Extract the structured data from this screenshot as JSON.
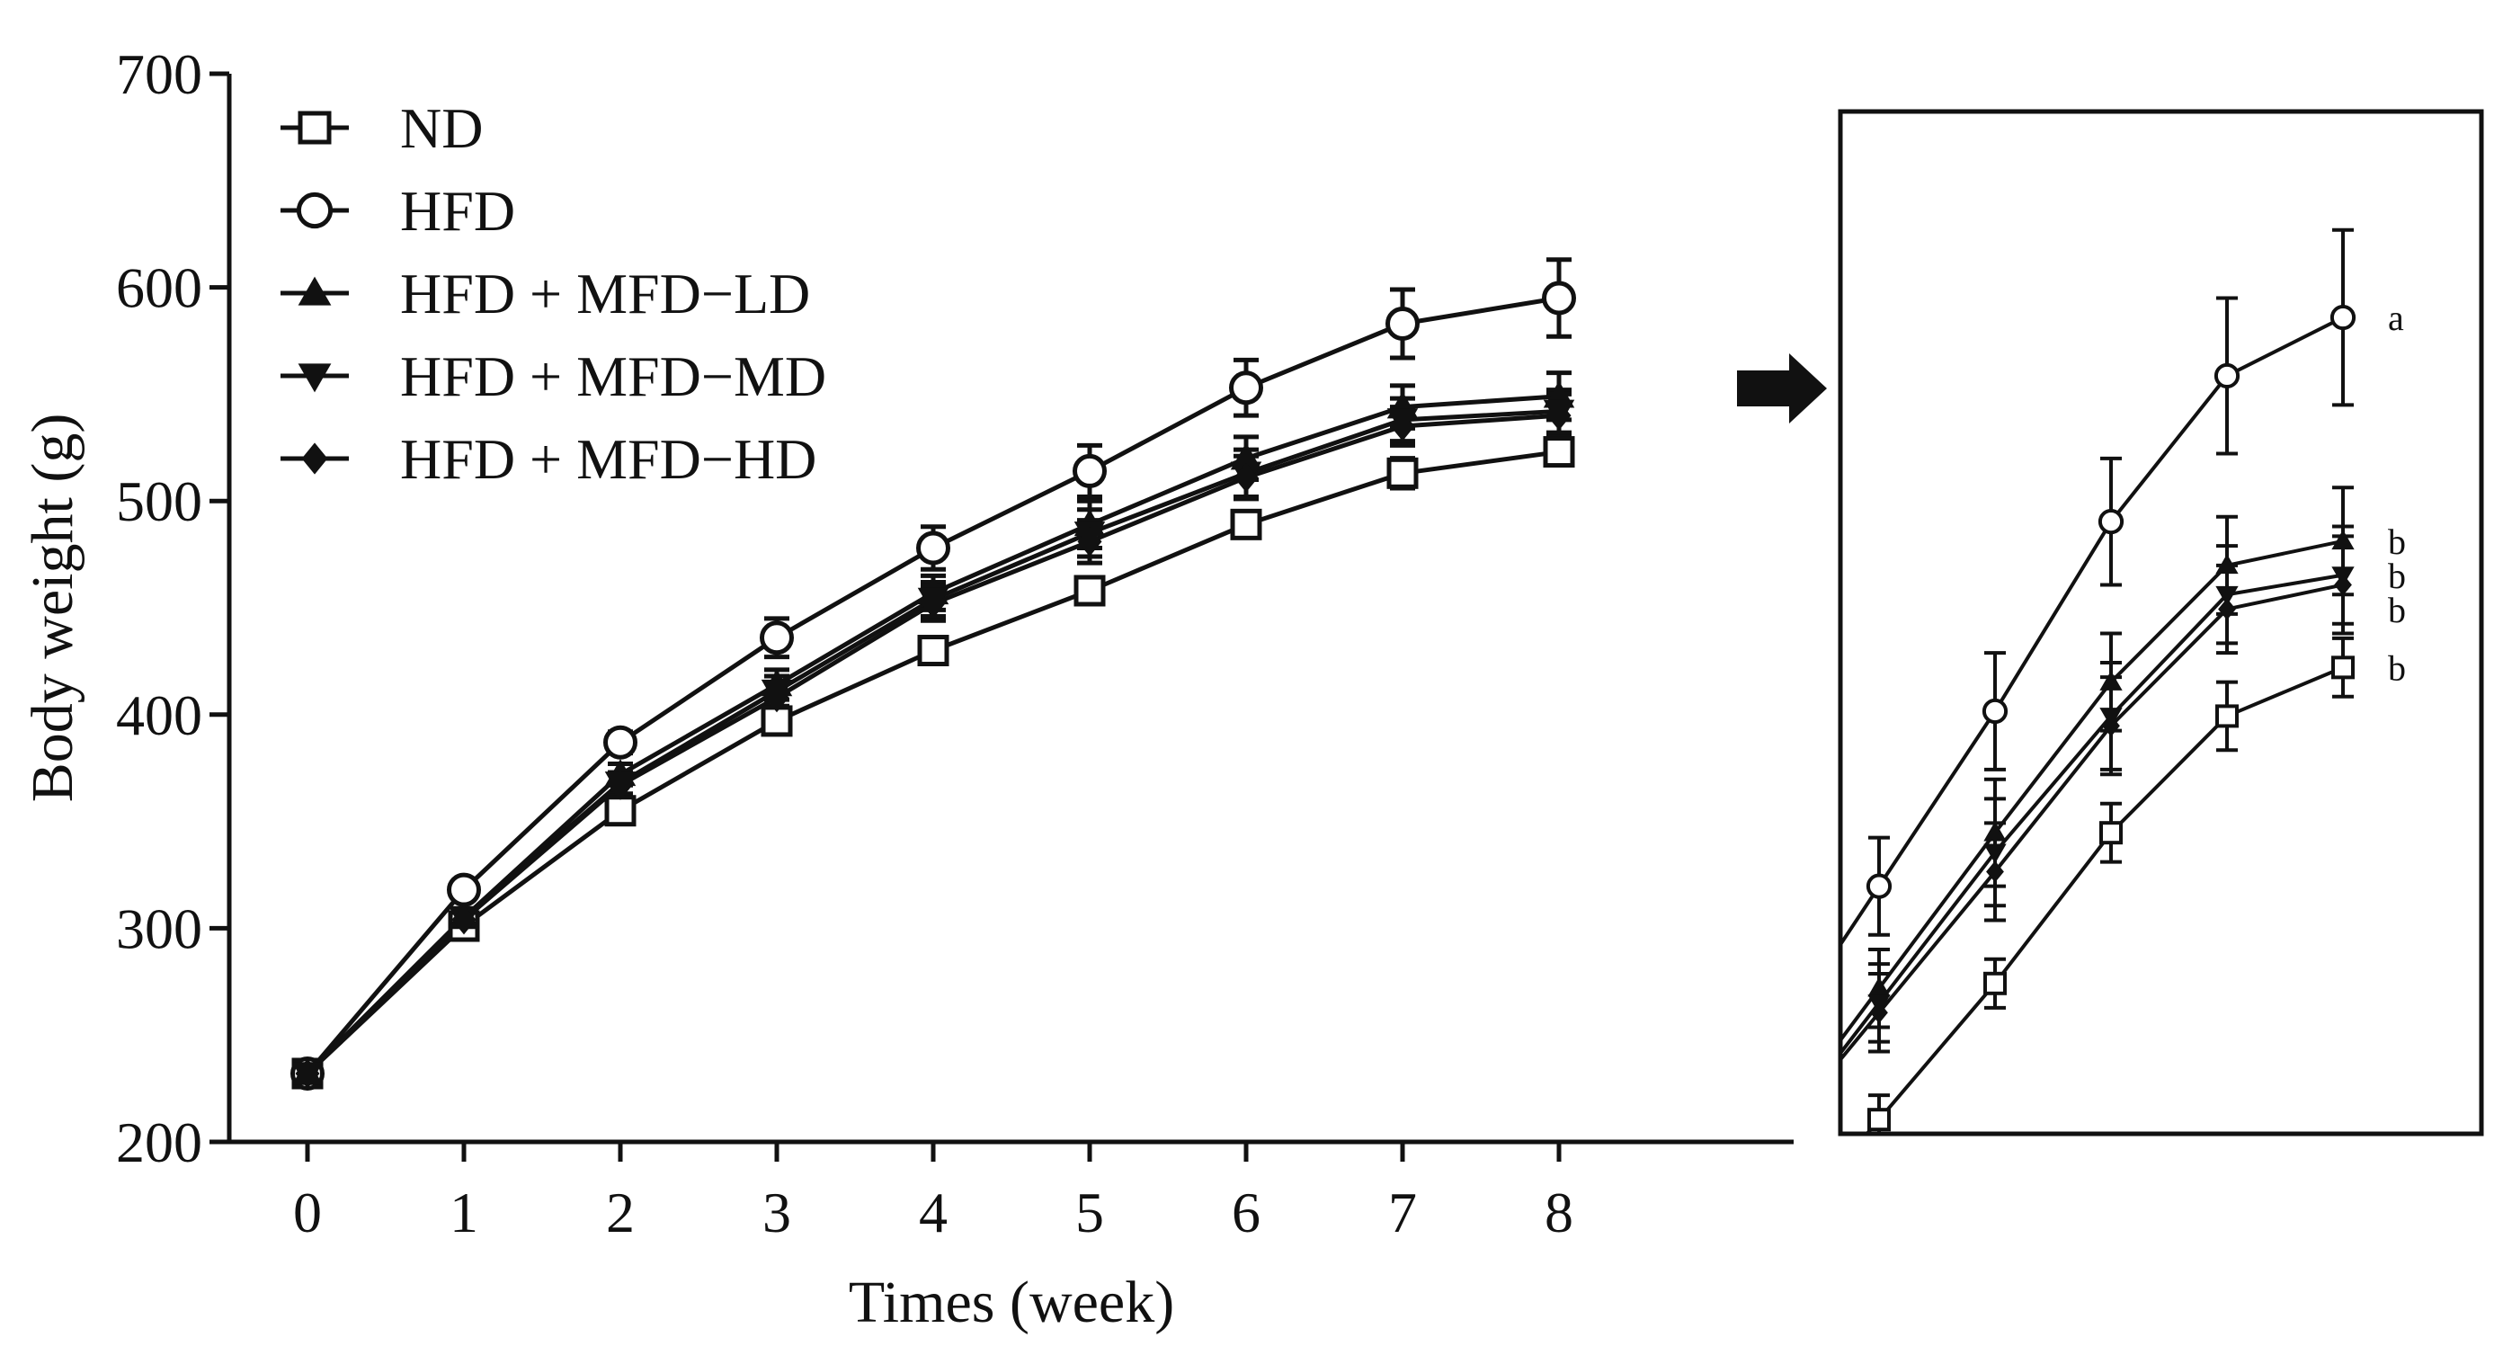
{
  "chart_data": [
    {
      "type": "line",
      "panel": "main",
      "xlabel": "Times (week)",
      "ylabel": "Body weight (g)",
      "x": [
        0,
        1,
        2,
        3,
        4,
        5,
        6,
        7,
        8
      ],
      "xticks": [
        "0",
        "1",
        "2",
        "3",
        "4",
        "5",
        "6",
        "7",
        "8"
      ],
      "yticks": [
        "200",
        "300",
        "400",
        "500",
        "600",
        "700"
      ],
      "xlim": [
        -0.5,
        9.5
      ],
      "ylim": [
        200,
        700
      ],
      "grid": false,
      "legend_position": "top-left",
      "series": [
        {
          "name": "ND",
          "marker": "square",
          "values": [
            232,
            301,
            355,
            397,
            430,
            458,
            489,
            513,
            523
          ],
          "errors": [
            3,
            4,
            5,
            5,
            5,
            5,
            6,
            7,
            6
          ]
        },
        {
          "name": "HFD",
          "marker": "circle",
          "values": [
            232,
            318,
            387,
            436,
            478,
            514,
            553,
            583,
            595
          ],
          "errors": [
            3,
            4,
            5,
            9,
            10,
            12,
            13,
            16,
            18
          ]
        },
        {
          "name": "HFD + MFD−LD",
          "marker": "triangle-up",
          "values": [
            232,
            305,
            372,
            414,
            457,
            489,
            520,
            544,
            549
          ],
          "errors": [
            3,
            4,
            5,
            7,
            8,
            11,
            10,
            10,
            11
          ]
        },
        {
          "name": "HFD + MFD−MD",
          "marker": "triangle-down",
          "values": [
            232,
            305,
            368,
            411,
            454,
            485,
            513,
            538,
            542
          ],
          "errors": [
            3,
            4,
            5,
            7,
            8,
            11,
            11,
            10,
            10
          ]
        },
        {
          "name": "HFD + MFD−HD",
          "marker": "diamond",
          "values": [
            232,
            304,
            367,
            408,
            452,
            481,
            511,
            535,
            540
          ],
          "errors": [
            3,
            4,
            5,
            7,
            8,
            10,
            10,
            9,
            10
          ]
        }
      ]
    },
    {
      "type": "line",
      "panel": "inset-zoom",
      "x": [
        4,
        5,
        6,
        7,
        8
      ],
      "ylim": [
        428,
        605
      ],
      "axes_shown": false,
      "series": [
        {
          "name": "ND",
          "marker": "square",
          "values": [
            430,
            458,
            489,
            513,
            523
          ],
          "errors": [
            5,
            5,
            6,
            7,
            6
          ],
          "label": "b"
        },
        {
          "name": "HFD",
          "marker": "circle",
          "values": [
            478,
            514,
            553,
            583,
            595
          ],
          "errors": [
            10,
            12,
            13,
            16,
            18
          ],
          "label": "a"
        },
        {
          "name": "HFD + MFD−LD",
          "marker": "triangle-up",
          "values": [
            457,
            489,
            520,
            544,
            549
          ],
          "errors": [
            8,
            11,
            10,
            10,
            11
          ],
          "label": "b"
        },
        {
          "name": "HFD + MFD−MD",
          "marker": "triangle-down",
          "values": [
            454,
            485,
            513,
            538,
            542
          ],
          "errors": [
            8,
            11,
            11,
            10,
            10
          ],
          "label": "b"
        },
        {
          "name": "HFD + MFD−HD",
          "marker": "diamond",
          "values": [
            452,
            481,
            511,
            535,
            540
          ],
          "errors": [
            8,
            10,
            10,
            9,
            10
          ],
          "label": "b"
        }
      ]
    }
  ]
}
